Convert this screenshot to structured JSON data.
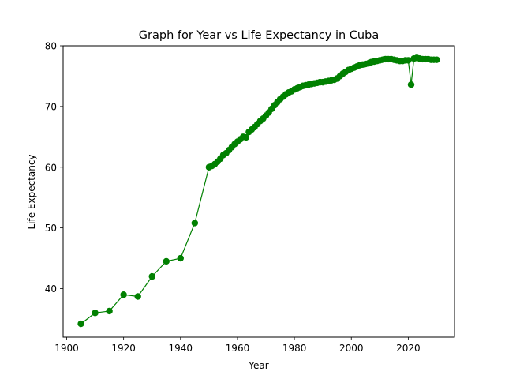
{
  "chart_data": {
    "type": "line",
    "title": "Graph for Year vs Life Expectancy in Cuba",
    "xlabel": "Year",
    "ylabel": "Life Expectancy",
    "xlim": [
      1898.75,
      2036.25
    ],
    "ylim": [
      32.0,
      80.0
    ],
    "xticks": [
      1900,
      1920,
      1940,
      1960,
      1980,
      2000,
      2020
    ],
    "yticks": [
      40,
      50,
      60,
      70,
      80
    ],
    "grid": false,
    "colors": {
      "line": "#008000",
      "marker": "#008000"
    },
    "series": [
      {
        "x": [
          1905,
          1910,
          1915,
          1920,
          1925,
          1930,
          1935,
          1940,
          1945,
          1950,
          1951,
          1952,
          1953,
          1954,
          1955,
          1956,
          1957,
          1958,
          1959,
          1960,
          1961,
          1962,
          1963,
          1964,
          1965,
          1966,
          1967,
          1968,
          1969,
          1970,
          1971,
          1972,
          1973,
          1974,
          1975,
          1976,
          1977,
          1978,
          1979,
          1980,
          1981,
          1982,
          1983,
          1984,
          1985,
          1986,
          1987,
          1988,
          1989,
          1990,
          1991,
          1992,
          1993,
          1994,
          1995,
          1996,
          1997,
          1998,
          1999,
          2000,
          2001,
          2002,
          2003,
          2004,
          2005,
          2006,
          2007,
          2008,
          2009,
          2010,
          2011,
          2012,
          2013,
          2014,
          2015,
          2016,
          2017,
          2018,
          2019,
          2020,
          2021,
          2022,
          2023,
          2024,
          2025,
          2026,
          2027,
          2028,
          2029,
          2030
        ],
        "values": [
          34.2,
          36.0,
          36.3,
          39.0,
          38.7,
          42.0,
          44.5,
          45.0,
          50.8,
          60.0,
          60.2,
          60.5,
          60.9,
          61.4,
          62.0,
          62.3,
          62.8,
          63.3,
          63.8,
          64.2,
          64.6,
          65.0,
          64.9,
          65.8,
          66.2,
          66.6,
          67.1,
          67.6,
          68.0,
          68.5,
          69.0,
          69.6,
          70.2,
          70.7,
          71.2,
          71.6,
          72.0,
          72.3,
          72.5,
          72.8,
          73.0,
          73.2,
          73.4,
          73.5,
          73.6,
          73.7,
          73.8,
          73.9,
          74.0,
          74.0,
          74.1,
          74.2,
          74.3,
          74.4,
          74.6,
          75.0,
          75.4,
          75.7,
          76.0,
          76.2,
          76.4,
          76.6,
          76.8,
          76.9,
          77.0,
          77.1,
          77.3,
          77.4,
          77.5,
          77.6,
          77.7,
          77.8,
          77.8,
          77.8,
          77.7,
          77.6,
          77.5,
          77.5,
          77.6,
          77.6,
          73.6,
          77.9,
          78.0,
          77.9,
          77.8,
          77.8,
          77.8,
          77.7,
          77.7,
          77.7
        ]
      }
    ]
  }
}
